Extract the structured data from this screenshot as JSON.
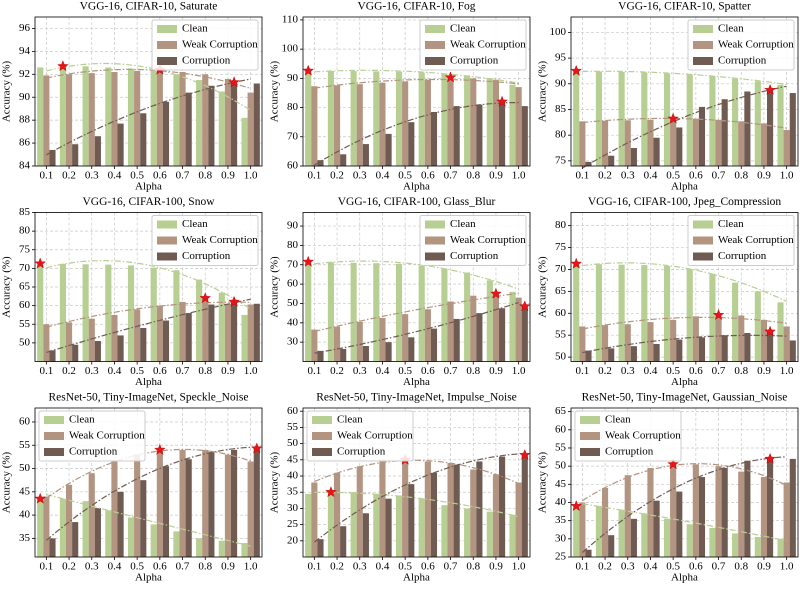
{
  "chart_data": [
    {
      "type": "bar",
      "title": "VGG-16, CIFAR-10, Saturate",
      "xlabel": "Alpha",
      "ylabel": "Accuracy (%)",
      "categories": [
        "0.1",
        "0.2",
        "0.3",
        "0.4",
        "0.5",
        "0.6",
        "0.7",
        "0.8",
        "0.9",
        "1.0"
      ],
      "series": [
        {
          "name": "Clean",
          "color": "#b8cf93",
          "values": [
            92.6,
            92.7,
            92.7,
            92.6,
            92.5,
            92.3,
            92.0,
            91.5,
            90.5,
            88.2
          ]
        },
        {
          "name": "Weak Corruption",
          "color": "#b39480",
          "values": [
            91.9,
            92.0,
            92.1,
            92.2,
            92.3,
            92.4,
            92.2,
            92.0,
            91.6,
            90.4
          ]
        },
        {
          "name": "Corruption",
          "color": "#6f5b52",
          "values": [
            85.4,
            85.9,
            86.6,
            87.7,
            88.6,
            89.6,
            90.4,
            91.0,
            91.3,
            91.2
          ]
        }
      ],
      "ylim": [
        84,
        97
      ],
      "yticks": [
        84,
        86,
        88,
        90,
        92,
        94,
        96
      ],
      "grid": true,
      "legend": "upper right"
    },
    {
      "type": "bar",
      "title": "VGG-16, CIFAR-10, Fog",
      "xlabel": "Alpha",
      "ylabel": "Accuracy (%)",
      "categories": [
        "0.1",
        "0.2",
        "0.3",
        "0.4",
        "0.5",
        "0.6",
        "0.7",
        "0.8",
        "0.9",
        "1.0"
      ],
      "series": [
        {
          "name": "Clean",
          "color": "#b8cf93",
          "values": [
            92.6,
            92.5,
            92.5,
            92.4,
            92.3,
            92.0,
            91.6,
            91.0,
            90.0,
            87.8
          ]
        },
        {
          "name": "Weak Corruption",
          "color": "#b39480",
          "values": [
            87.3,
            87.6,
            88.0,
            88.5,
            89.0,
            89.5,
            90.3,
            90.0,
            89.5,
            87.0
          ]
        },
        {
          "name": "Corruption",
          "color": "#6f5b52",
          "values": [
            62.0,
            64.0,
            67.5,
            71.0,
            75.0,
            78.5,
            80.5,
            81.0,
            82.0,
            80.5
          ]
        }
      ],
      "ylim": [
        60,
        111
      ],
      "yticks": [
        60,
        70,
        80,
        90,
        100,
        110
      ],
      "grid": true,
      "legend": "upper right"
    },
    {
      "type": "bar",
      "title": "VGG-16, CIFAR-10, Spatter",
      "xlabel": "Alpha",
      "ylabel": "Accuracy (%)",
      "categories": [
        "0.1",
        "0.2",
        "0.3",
        "0.4",
        "0.5",
        "0.6",
        "0.7",
        "0.8",
        "0.9",
        "1.0"
      ],
      "series": [
        {
          "name": "Clean",
          "color": "#b8cf93",
          "values": [
            92.5,
            92.4,
            92.3,
            92.2,
            92.0,
            91.8,
            91.5,
            91.0,
            90.5,
            89.8
          ]
        },
        {
          "name": "Weak Corruption",
          "color": "#b39480",
          "values": [
            82.7,
            82.8,
            82.9,
            83.0,
            83.2,
            83.2,
            83.0,
            82.7,
            82.3,
            81.0
          ]
        },
        {
          "name": "Corruption",
          "color": "#6f5b52",
          "values": [
            74.8,
            76.0,
            77.5,
            79.5,
            81.5,
            85.5,
            87.0,
            88.5,
            88.8,
            88.2
          ]
        }
      ],
      "ylim": [
        74,
        103
      ],
      "yticks": [
        75,
        80,
        85,
        90,
        95,
        100
      ],
      "grid": true,
      "legend": "upper right"
    },
    {
      "type": "bar",
      "title": "VGG-16, CIFAR-100, Snow",
      "xlabel": "Alpha",
      "ylabel": "Accuracy (%)",
      "categories": [
        "0.1",
        "0.2",
        "0.3",
        "0.4",
        "0.5",
        "0.6",
        "0.7",
        "0.8",
        "0.9",
        "1.0"
      ],
      "series": [
        {
          "name": "Clean",
          "color": "#b8cf93",
          "values": [
            71.3,
            71.2,
            71.1,
            71.0,
            70.8,
            70.2,
            69.5,
            67.0,
            63.5,
            57.5
          ]
        },
        {
          "name": "Weak Corruption",
          "color": "#b39480",
          "values": [
            55.0,
            55.5,
            56.5,
            57.5,
            59.0,
            60.0,
            61.0,
            62.0,
            60.5,
            60.3
          ]
        },
        {
          "name": "Corruption",
          "color": "#6f5b52",
          "values": [
            48.0,
            49.5,
            50.5,
            52.0,
            54.0,
            56.0,
            58.0,
            60.3,
            61.0,
            60.5
          ]
        }
      ],
      "ylim": [
        45,
        85
      ],
      "yticks": [
        50,
        55,
        60,
        65,
        70,
        75,
        80,
        85
      ],
      "grid": true,
      "legend": "upper right"
    },
    {
      "type": "bar",
      "title": "VGG-16, CIFAR-100, Glass_Blur",
      "xlabel": "Alpha",
      "ylabel": "Accuracy (%)",
      "categories": [
        "0.1",
        "0.2",
        "0.3",
        "0.4",
        "0.5",
        "0.6",
        "0.7",
        "0.8",
        "0.9",
        "1.0"
      ],
      "series": [
        {
          "name": "Clean",
          "color": "#b8cf93",
          "values": [
            71.5,
            71.3,
            71.0,
            70.8,
            70.5,
            69.5,
            68.0,
            66.0,
            62.0,
            56.0
          ]
        },
        {
          "name": "Weak Corruption",
          "color": "#b39480",
          "values": [
            36.5,
            38.0,
            40.5,
            42.5,
            44.5,
            47.0,
            51.0,
            54.0,
            55.0,
            53.0
          ]
        },
        {
          "name": "Corruption",
          "color": "#6f5b52",
          "values": [
            25.5,
            26.5,
            28.0,
            30.0,
            32.5,
            37.0,
            42.0,
            45.0,
            47.5,
            48.5
          ]
        }
      ],
      "ylim": [
        20,
        97
      ],
      "yticks": [
        30,
        40,
        50,
        60,
        70,
        80,
        90
      ],
      "grid": true,
      "legend": "upper right"
    },
    {
      "type": "bar",
      "title": "VGG-16, CIFAR-100, Jpeg_Compression",
      "xlabel": "Alpha",
      "ylabel": "Accuracy (%)",
      "categories": [
        "0.1",
        "0.2",
        "0.3",
        "0.4",
        "0.5",
        "0.6",
        "0.7",
        "0.8",
        "0.9",
        "1.0"
      ],
      "series": [
        {
          "name": "Clean",
          "color": "#b8cf93",
          "values": [
            71.3,
            71.2,
            71.1,
            71.0,
            70.8,
            70.0,
            69.0,
            67.0,
            65.0,
            62.5
          ]
        },
        {
          "name": "Weak Corruption",
          "color": "#b39480",
          "values": [
            57.0,
            57.3,
            57.5,
            58.0,
            58.5,
            59.3,
            59.6,
            59.5,
            58.5,
            57.0
          ]
        },
        {
          "name": "Corruption",
          "color": "#6f5b52",
          "values": [
            51.5,
            52.0,
            52.5,
            53.0,
            54.0,
            54.5,
            55.0,
            55.5,
            55.8,
            53.8
          ]
        }
      ],
      "ylim": [
        49,
        83
      ],
      "yticks": [
        50,
        55,
        60,
        65,
        70,
        75,
        80
      ],
      "grid": true,
      "legend": "upper right"
    },
    {
      "type": "bar",
      "title": "ResNet-50, Tiny-ImageNet, Speckle_Noise",
      "xlabel": "Alpha",
      "ylabel": "Accuracy (%)",
      "categories": [
        "0.1",
        "0.2",
        "0.3",
        "0.4",
        "0.5",
        "0.6",
        "0.7",
        "0.8",
        "0.9",
        "1.0"
      ],
      "series": [
        {
          "name": "Clean",
          "color": "#b8cf93",
          "values": [
            43.5,
            43.5,
            43.0,
            41.0,
            39.5,
            38.0,
            36.5,
            35.0,
            34.5,
            34.0
          ]
        },
        {
          "name": "Weak Corruption",
          "color": "#b39480",
          "values": [
            44.0,
            46.5,
            49.0,
            51.5,
            53.0,
            54.0,
            54.0,
            54.0,
            53.0,
            51.5
          ]
        },
        {
          "name": "Corruption",
          "color": "#6f5b52",
          "values": [
            35.0,
            38.5,
            41.5,
            45.0,
            47.5,
            50.5,
            52.0,
            53.5,
            54.0,
            54.3
          ]
        }
      ],
      "ylim": [
        31,
        63
      ],
      "yticks": [
        35,
        40,
        45,
        50,
        55,
        60
      ],
      "grid": true,
      "legend": "upper left"
    },
    {
      "type": "bar",
      "title": "ResNet-50, Tiny-ImageNet, Impulse_Noise",
      "xlabel": "Alpha",
      "ylabel": "Accuracy (%)",
      "categories": [
        "0.1",
        "0.2",
        "0.3",
        "0.4",
        "0.5",
        "0.6",
        "0.7",
        "0.8",
        "0.9",
        "1.0"
      ],
      "series": [
        {
          "name": "Clean",
          "color": "#b8cf93",
          "values": [
            34.5,
            35.0,
            35.0,
            34.5,
            34.0,
            33.0,
            31.0,
            30.0,
            29.0,
            28.0
          ]
        },
        {
          "name": "Weak Corruption",
          "color": "#b39480",
          "values": [
            38.0,
            41.0,
            43.0,
            44.5,
            45.0,
            44.5,
            44.0,
            42.0,
            40.5,
            38.0
          ]
        },
        {
          "name": "Corruption",
          "color": "#6f5b52",
          "values": [
            20.5,
            24.5,
            28.5,
            33.0,
            37.5,
            41.0,
            43.5,
            44.5,
            46.0,
            46.5
          ]
        }
      ],
      "ylim": [
        15,
        61
      ],
      "yticks": [
        20,
        25,
        30,
        35,
        40,
        45,
        50,
        55,
        60
      ],
      "grid": true,
      "legend": "upper left"
    },
    {
      "type": "bar",
      "title": "ResNet-50, Tiny-ImageNet, Gaussian_Noise",
      "xlabel": "Alpha",
      "ylabel": "Accuracy (%)",
      "categories": [
        "0.1",
        "0.2",
        "0.3",
        "0.4",
        "0.5",
        "0.6",
        "0.7",
        "0.8",
        "0.9",
        "1.0"
      ],
      "series": [
        {
          "name": "Clean",
          "color": "#b8cf93",
          "values": [
            39.0,
            39.0,
            38.0,
            37.0,
            35.5,
            34.0,
            33.0,
            31.5,
            30.5,
            30.0
          ]
        },
        {
          "name": "Weak Corruption",
          "color": "#b39480",
          "values": [
            40.0,
            44.0,
            47.5,
            49.5,
            50.5,
            50.5,
            50.0,
            48.5,
            47.0,
            45.5
          ]
        },
        {
          "name": "Corruption",
          "color": "#6f5b52",
          "values": [
            27.0,
            31.0,
            35.5,
            40.5,
            43.0,
            47.0,
            49.5,
            51.5,
            52.0,
            52.0
          ]
        }
      ],
      "ylim": [
        25,
        66
      ],
      "yticks": [
        25,
        30,
        35,
        40,
        45,
        50,
        55,
        60,
        65
      ],
      "grid": true,
      "legend": "upper left"
    }
  ]
}
